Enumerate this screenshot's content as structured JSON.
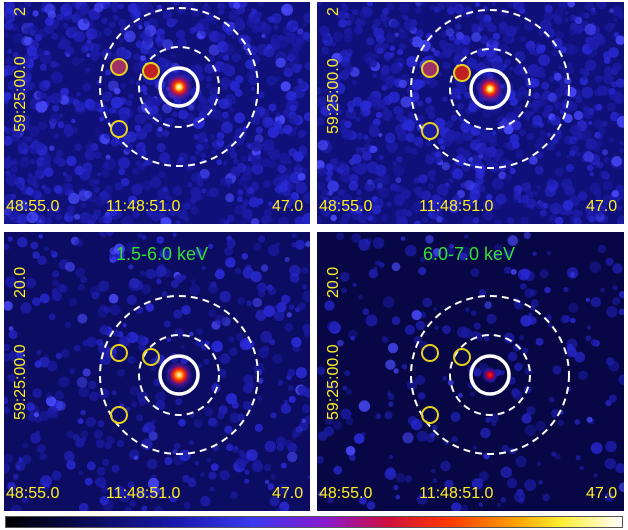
{
  "panels": [
    {
      "id": "p1",
      "title": "",
      "dec_label": "59:25:00.0",
      "dec_label_top": "2",
      "ra_left": "48:55.0",
      "ra_mid": "11:48:51.0",
      "ra_right": "47.0",
      "source_brightness": "bright"
    },
    {
      "id": "p2",
      "title": "",
      "dec_label": "59:25:00.0",
      "dec_label_top": "2",
      "ra_left": "48:55.0",
      "ra_mid": "11:48:51.0",
      "ra_right": "47.0",
      "source_brightness": "bright"
    },
    {
      "id": "p3",
      "title": "1.5-6.0 keV",
      "dec_label": "59:25:00.0",
      "dec_label_top": "20.0",
      "ra_left": "48:55.0",
      "ra_mid": "11:48:51.0",
      "ra_right": "47.0",
      "source_brightness": "medium"
    },
    {
      "id": "p4",
      "title": "6.0-7.0 keV",
      "dec_label": "59:25:00.0",
      "dec_label_top": "20.0",
      "ra_left": "48:55.0",
      "ra_mid": "11:48:51.0",
      "ra_right": "47.0",
      "source_brightness": "faint"
    }
  ],
  "colors": {
    "label": "#ffee22",
    "title": "#33dd33",
    "background": "#0a0a55",
    "source_circle": "#ffffff",
    "annulus": "#ffffff",
    "excluded_region": "#e8d020"
  },
  "colorbar": "black-blue-red-yellow-white"
}
